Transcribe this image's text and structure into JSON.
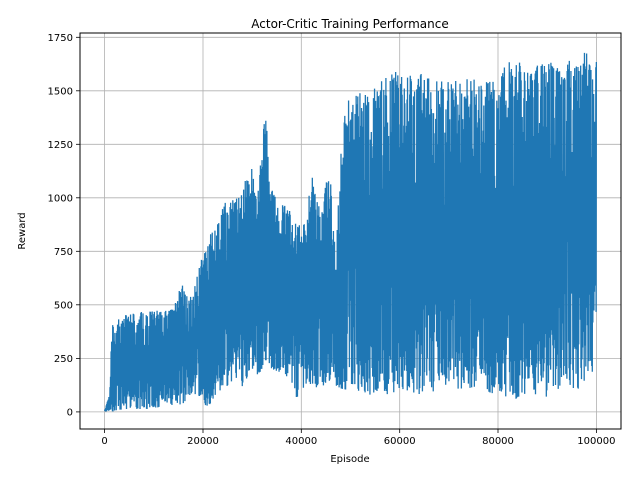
{
  "chart_data": {
    "type": "line",
    "title": "Actor-Critic Training Performance",
    "xlabel": "Episode",
    "ylabel": "Reward",
    "xlim": [
      -5000,
      105000
    ],
    "ylim": [
      -80,
      1770
    ],
    "xticks": [
      0,
      20000,
      40000,
      60000,
      80000,
      100000
    ],
    "yticks": [
      0,
      250,
      500,
      750,
      1000,
      1250,
      1500,
      1750
    ],
    "grid": true,
    "series_color": "#1f77b4",
    "envelope": {
      "episode": [
        0,
        1000,
        1500,
        3000,
        5000,
        8000,
        10000,
        12000,
        14000,
        15000,
        16000,
        17000,
        18000,
        19000,
        20000,
        21000,
        22000,
        23000,
        24000,
        25000,
        26000,
        27000,
        28000,
        29000,
        30000,
        31000,
        32000,
        32700,
        33500,
        34000,
        35000,
        36000,
        37000,
        38000,
        39000,
        40000,
        41000,
        42000,
        43000,
        44000,
        45000,
        46000,
        47000,
        48000,
        49000,
        50000,
        52000,
        54000,
        56000,
        58000,
        60000,
        62000,
        64000,
        66000,
        68000,
        70000,
        72000,
        74000,
        76000,
        78000,
        80000,
        82000,
        84000,
        86000,
        88000,
        90000,
        92000,
        94000,
        96000,
        98000,
        99000,
        100000
      ],
      "upper": [
        10,
        80,
        410,
        440,
        460,
        470,
        475,
        470,
        480,
        560,
        610,
        540,
        560,
        650,
        740,
        780,
        870,
        880,
        950,
        1000,
        990,
        1000,
        1060,
        1100,
        1150,
        1000,
        1230,
        1480,
        1100,
        1040,
        990,
        1000,
        970,
        920,
        880,
        890,
        900,
        1130,
        1010,
        930,
        1090,
        1070,
        720,
        1200,
        1450,
        1460,
        1500,
        1510,
        1560,
        1570,
        1600,
        1570,
        1580,
        1600,
        1550,
        1560,
        1550,
        1560,
        1550,
        1540,
        1570,
        1640,
        1640,
        1600,
        1630,
        1640,
        1620,
        1640,
        1640,
        1690,
        1610,
        1640
      ],
      "lower": [
        0,
        0,
        0,
        10,
        10,
        10,
        20,
        20,
        30,
        20,
        40,
        60,
        80,
        80,
        40,
        20,
        60,
        80,
        110,
        100,
        120,
        160,
        120,
        160,
        180,
        160,
        200,
        240,
        220,
        200,
        190,
        180,
        160,
        140,
        60,
        100,
        130,
        130,
        110,
        130,
        110,
        160,
        120,
        100,
        100,
        100,
        90,
        80,
        90,
        80,
        100,
        90,
        80,
        90,
        100,
        110,
        100,
        110,
        100,
        90,
        80,
        60,
        60,
        80,
        80,
        60,
        100,
        130,
        100,
        120,
        130,
        400
      ]
    }
  }
}
